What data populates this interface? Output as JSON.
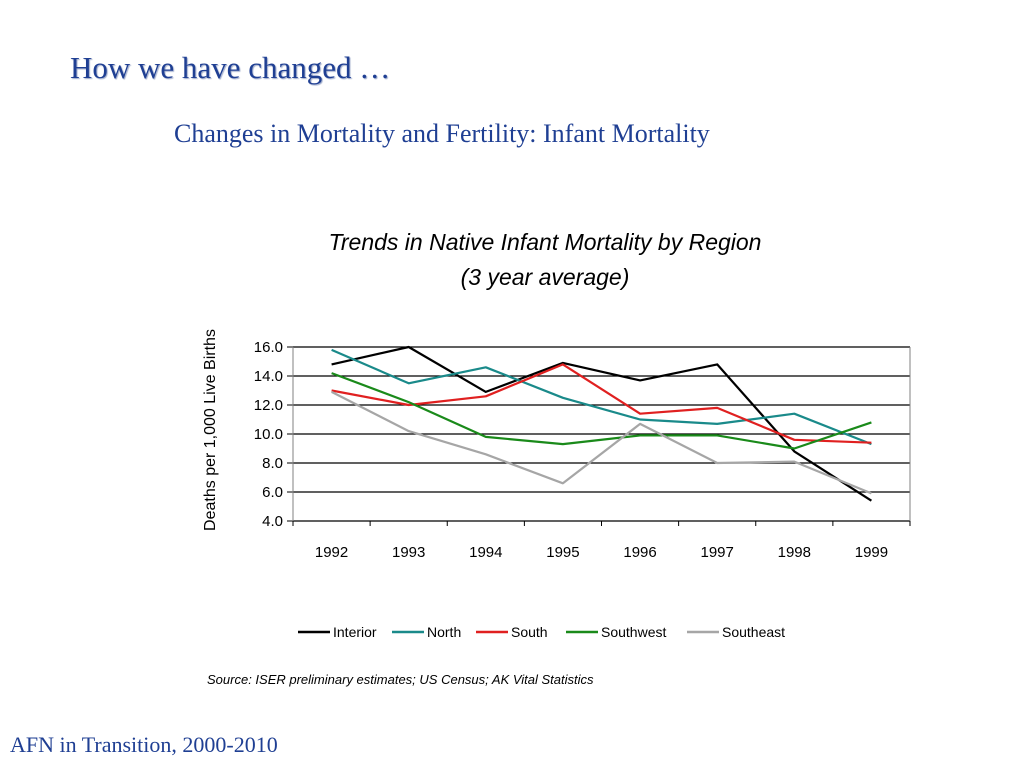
{
  "slide": {
    "heading": "How we have changed …",
    "subheading": "Changes in Mortality and Fertility:  Infant Mortality",
    "footer": "AFN in Transition, 2000-2010"
  },
  "chart_data": {
    "type": "line",
    "title": "Trends in Native Infant Mortality by Region",
    "subtitle": "(3 year average)",
    "ylabel": "Deaths per 1,000 Live Births",
    "xlabel": "",
    "ylim": [
      4.0,
      16.0
    ],
    "yticks": [
      "16.0",
      "14.0",
      "12.0",
      "10.0",
      "8.0",
      "6.0",
      "4.0"
    ],
    "categories": [
      "1992",
      "1993",
      "1994",
      "1995",
      "1996",
      "1997",
      "1998",
      "1999"
    ],
    "grid": true,
    "legend": "bottom",
    "series": [
      {
        "name": "Interior",
        "color": "#000000",
        "values": [
          14.8,
          16.0,
          12.9,
          14.9,
          13.7,
          14.8,
          8.8,
          5.4
        ]
      },
      {
        "name": "North",
        "color": "#1a8a8a",
        "values": [
          15.8,
          13.5,
          14.6,
          12.5,
          11.0,
          10.7,
          11.4,
          9.3
        ]
      },
      {
        "name": "South",
        "color": "#e02020",
        "values": [
          13.0,
          12.0,
          12.6,
          14.8,
          11.4,
          11.8,
          9.6,
          9.4
        ]
      },
      {
        "name": "Southwest",
        "color": "#1a8a1a",
        "values": [
          14.2,
          12.2,
          9.8,
          9.3,
          9.9,
          9.9,
          9.0,
          10.8
        ]
      },
      {
        "name": "Southeast",
        "color": "#a6a6a6",
        "values": [
          12.9,
          10.2,
          8.6,
          6.6,
          10.7,
          8.0,
          8.1,
          5.9
        ]
      }
    ],
    "source": "Source:  ISER preliminary estimates; US Census; AK Vital Statistics"
  }
}
